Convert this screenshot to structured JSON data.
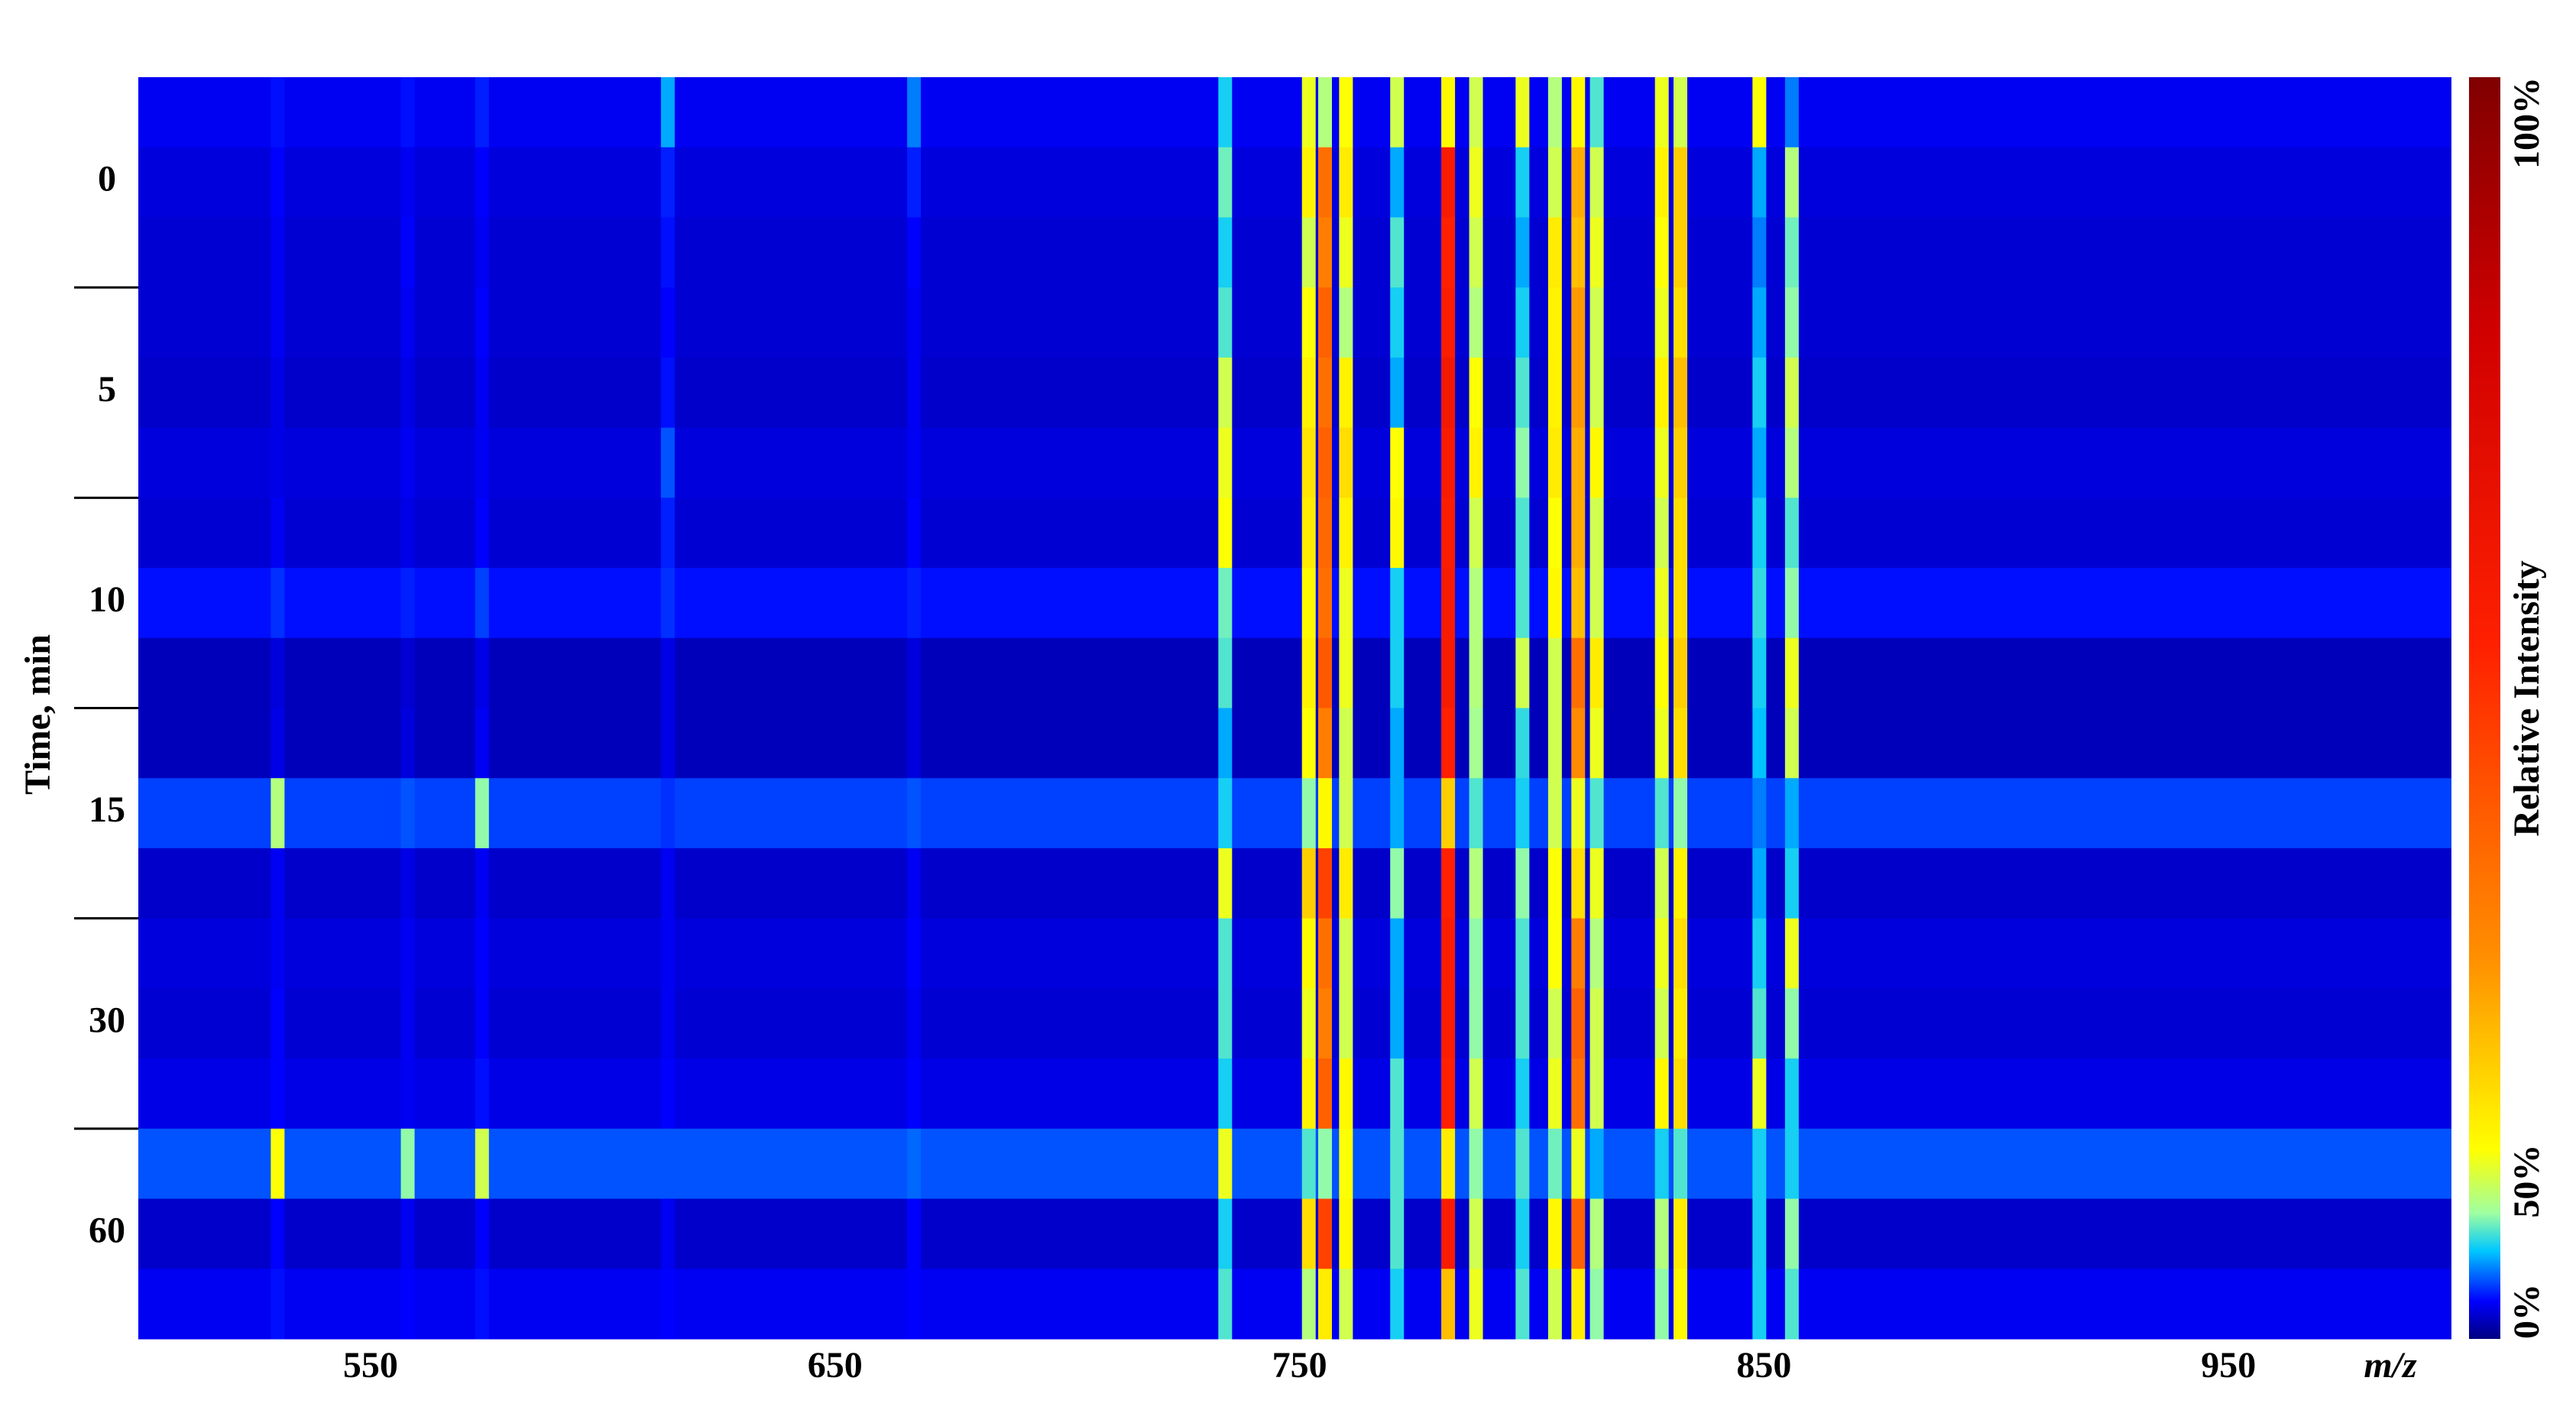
{
  "chart_data": {
    "type": "heatmap",
    "x_label": "m/z",
    "y_label": "Time, min",
    "colorbar_label": "Relative Intensity",
    "xlim": [
      500,
      998
    ],
    "xticks": [
      550,
      650,
      750,
      850,
      950
    ],
    "y": [
      null,
      "0",
      null,
      null,
      "5",
      null,
      null,
      "10",
      null,
      null,
      "15",
      null,
      null,
      "30",
      null,
      null,
      "60",
      null
    ],
    "x": [
      530,
      558,
      574,
      614,
      667,
      734,
      752,
      755.5,
      760,
      771,
      782,
      788,
      798,
      805,
      810,
      814,
      828,
      832,
      849,
      856
    ],
    "baseline": [
      30,
      28,
      27,
      27,
      26,
      28,
      27,
      32,
      24,
      24,
      35,
      26,
      28,
      27,
      29,
      36,
      26,
      30
    ],
    "z": [
      [
        32,
        32,
        33,
        40,
        38,
        42,
        52,
        48,
        53,
        50,
        54,
        50,
        52,
        48,
        54,
        44,
        52,
        50,
        53,
        38
      ],
      [
        31,
        30,
        31,
        33,
        33,
        45,
        55,
        72,
        56,
        40,
        84,
        52,
        42,
        50,
        64,
        50,
        55,
        60,
        40,
        48
      ],
      [
        30,
        31,
        30,
        32,
        31,
        42,
        50,
        70,
        52,
        44,
        82,
        50,
        40,
        56,
        62,
        52,
        53,
        60,
        38,
        45
      ],
      [
        30,
        30,
        31,
        31,
        30,
        44,
        53,
        74,
        48,
        42,
        83,
        48,
        42,
        55,
        66,
        50,
        52,
        58,
        40,
        46
      ],
      [
        29,
        29,
        30,
        32,
        30,
        50,
        55,
        72,
        55,
        40,
        85,
        53,
        44,
        55,
        66,
        50,
        55,
        62,
        42,
        50
      ],
      [
        29,
        30,
        30,
        36,
        30,
        52,
        57,
        74,
        58,
        53,
        84,
        55,
        46,
        56,
        64,
        54,
        52,
        60,
        40,
        48
      ],
      [
        30,
        29,
        31,
        33,
        31,
        53,
        56,
        73,
        55,
        54,
        83,
        50,
        44,
        53,
        64,
        50,
        50,
        58,
        42,
        44
      ],
      [
        34,
        33,
        35,
        34,
        33,
        45,
        54,
        72,
        52,
        42,
        84,
        48,
        44,
        54,
        62,
        50,
        52,
        58,
        43,
        46
      ],
      [
        28,
        27,
        29,
        29,
        28,
        44,
        55,
        75,
        52,
        42,
        84,
        48,
        50,
        50,
        72,
        56,
        53,
        60,
        42,
        52
      ],
      [
        29,
        28,
        30,
        29,
        28,
        40,
        53,
        70,
        50,
        40,
        82,
        47,
        43,
        50,
        68,
        52,
        52,
        58,
        41,
        50
      ],
      [
        48,
        36,
        46,
        34,
        36,
        42,
        46,
        54,
        50,
        40,
        60,
        44,
        42,
        50,
        52,
        44,
        44,
        46,
        38,
        40
      ],
      [
        30,
        29,
        30,
        30,
        30,
        52,
        60,
        78,
        56,
        46,
        82,
        48,
        46,
        53,
        58,
        52,
        50,
        55,
        40,
        42
      ],
      [
        30,
        30,
        31,
        30,
        31,
        44,
        54,
        72,
        50,
        40,
        83,
        46,
        44,
        53,
        70,
        48,
        52,
        58,
        42,
        52
      ],
      [
        31,
        30,
        31,
        30,
        30,
        44,
        52,
        70,
        50,
        40,
        83,
        46,
        44,
        50,
        74,
        50,
        50,
        56,
        44,
        46
      ],
      [
        31,
        30,
        32,
        31,
        31,
        42,
        55,
        74,
        54,
        44,
        82,
        50,
        42,
        52,
        72,
        50,
        54,
        58,
        52,
        42
      ],
      [
        53,
        46,
        50,
        36,
        37,
        52,
        44,
        46,
        53,
        44,
        56,
        46,
        44,
        45,
        52,
        40,
        42,
        44,
        42,
        42
      ],
      [
        31,
        30,
        31,
        30,
        31,
        42,
        58,
        78,
        54,
        44,
        84,
        50,
        42,
        54,
        74,
        48,
        48,
        56,
        42,
        46
      ],
      [
        32,
        31,
        32,
        31,
        31,
        44,
        48,
        56,
        50,
        42,
        62,
        52,
        44,
        50,
        56,
        46,
        46,
        54,
        42,
        44
      ]
    ],
    "clim": [
      0,
      100
    ],
    "cticks": [
      {
        "value": 0,
        "label": "0%"
      },
      {
        "value": 50,
        "label": "50%"
      },
      {
        "value": 100,
        "label": "100%"
      }
    ],
    "colormap": [
      "#000080",
      "#0000ff",
      "#00c8ff",
      "#a0ffa0",
      "#ffff00",
      "#ff9000",
      "#ff2000",
      "#d00000",
      "#800000"
    ]
  }
}
